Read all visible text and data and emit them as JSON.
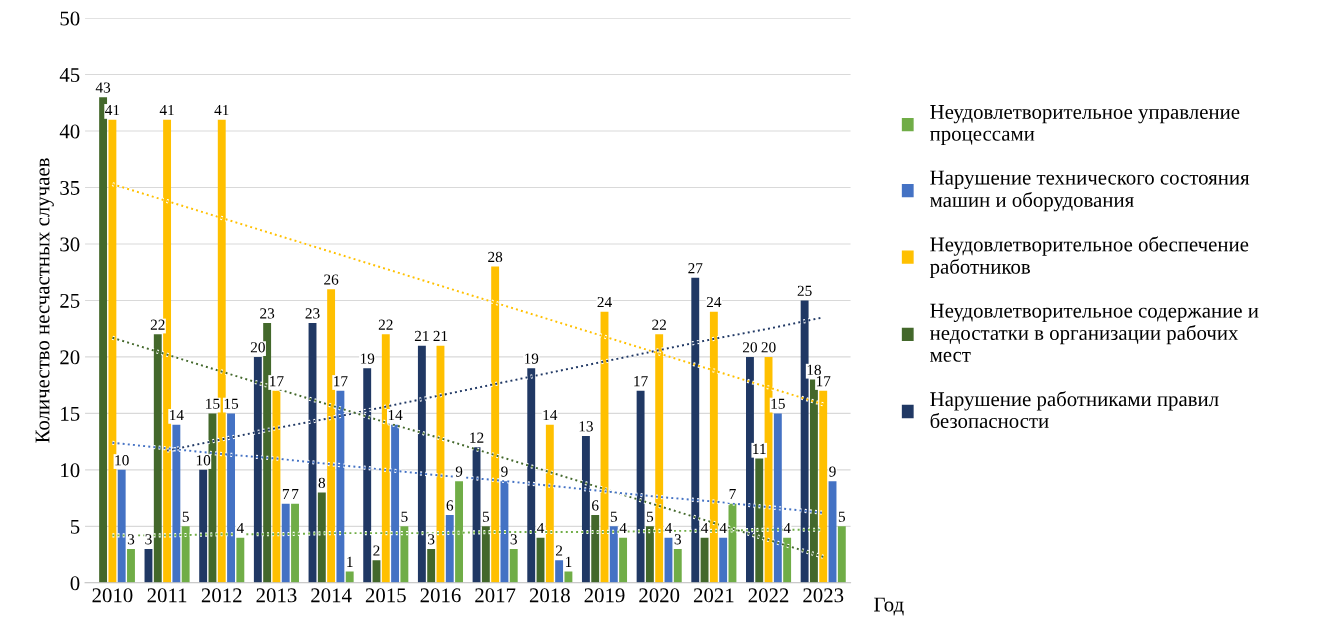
{
  "chart_data": {
    "type": "bar",
    "ylabel": "Количество несчастных случаев",
    "xlabel": "Год",
    "categories": [
      "2010",
      "2011",
      "2012",
      "2013",
      "2014",
      "2015",
      "2016",
      "2017",
      "2018",
      "2019",
      "2020",
      "2021",
      "2022",
      "2023"
    ],
    "series": [
      {
        "name": "Нарушение работниками правил\nбезопасности",
        "color": "#203864",
        "values": [
          null,
          3,
          10,
          20,
          23,
          19,
          21,
          12,
          19,
          13,
          17,
          27,
          20,
          25
        ],
        "value_labels": [
          null,
          "3",
          "10",
          "20",
          "23",
          "19",
          "21",
          "12",
          "19",
          "13",
          "17",
          "27",
          "20",
          "25"
        ]
      },
      {
        "name": "Неудовлетворительное содержание и\nнедостатки в организации рабочих\nмест",
        "color": "#43682b",
        "values": [
          43,
          22,
          15,
          23,
          8,
          2,
          3,
          5,
          4,
          6,
          5,
          4,
          11,
          18
        ],
        "value_labels": [
          "43",
          "22",
          "15",
          "23",
          "8",
          "2",
          "3",
          "5",
          "4",
          "6",
          "5",
          "4",
          "11",
          "18"
        ]
      },
      {
        "name": "Неудовлетворительное обеспечение\nработников",
        "color": "#ffc000",
        "values": [
          41,
          41,
          41,
          17,
          26,
          22,
          21,
          28,
          14,
          24,
          22,
          24,
          20,
          17
        ],
        "value_labels": [
          "41",
          "41",
          "41",
          "17",
          "26",
          "22",
          "21",
          "28",
          "14",
          "24",
          "22",
          "24",
          "20",
          "17"
        ]
      },
      {
        "name": "Нарушение технического состояния\nмашин и оборудования",
        "color": "#4472c4",
        "values": [
          10,
          14,
          15,
          7,
          17,
          14,
          6,
          9,
          2,
          5,
          4,
          4,
          15,
          9
        ],
        "value_labels": [
          "10",
          "14",
          "15",
          "7",
          "17",
          "14",
          "6",
          "9",
          "2",
          "5",
          "4",
          "4",
          "15",
          "9"
        ]
      },
      {
        "name": "Неудовлетворительное управление\nпроцессами",
        "color": "#70ad47",
        "values": [
          3,
          5,
          4,
          7,
          1,
          5,
          9,
          3,
          1,
          4,
          3,
          7,
          4,
          5
        ],
        "value_labels": [
          "3",
          "5",
          "4",
          "7",
          "1",
          "5",
          "9",
          "3",
          "1",
          "4",
          "3",
          "7",
          "4",
          "5"
        ]
      },
      {
        "type": "line",
        "line_style": "dotted",
        "color": "#203864",
        "values": [
          null,
          11.7,
          12.7,
          13.7,
          14.6,
          15.6,
          16.6,
          17.6,
          18.6,
          19.6,
          20.6,
          21.6,
          22.5,
          23.5
        ]
      },
      {
        "type": "line",
        "line_style": "dotted",
        "color": "#43682b",
        "values": [
          21.7,
          20.2,
          18.7,
          17.2,
          15.7,
          14.2,
          12.8,
          11.3,
          9.8,
          8.3,
          6.8,
          5.3,
          3.8,
          2.3
        ]
      },
      {
        "type": "line",
        "line_style": "dotted",
        "color": "#ffc000",
        "values": [
          35.3,
          33.8,
          32.3,
          30.8,
          29.3,
          27.8,
          26.3,
          24.8,
          23.3,
          21.8,
          20.3,
          18.8,
          17.3,
          15.8
        ]
      },
      {
        "type": "line",
        "line_style": "dotted",
        "color": "#4472c4",
        "values": [
          12.4,
          11.9,
          11.4,
          11.0,
          10.5,
          10.0,
          9.5,
          9.1,
          8.6,
          8.1,
          7.6,
          7.2,
          6.7,
          6.2
        ]
      },
      {
        "type": "line",
        "line_style": "dotted",
        "color": "#70ad47",
        "values": [
          4.2,
          4.2,
          4.3,
          4.3,
          4.4,
          4.4,
          4.4,
          4.5,
          4.5,
          4.5,
          4.6,
          4.6,
          4.7,
          4.7
        ]
      }
    ],
    "ylim": [
      0,
      50
    ],
    "yticks": [
      0,
      5,
      10,
      15,
      20,
      25,
      30,
      35,
      40,
      45,
      50
    ],
    "grid": "y",
    "legend": "right"
  }
}
